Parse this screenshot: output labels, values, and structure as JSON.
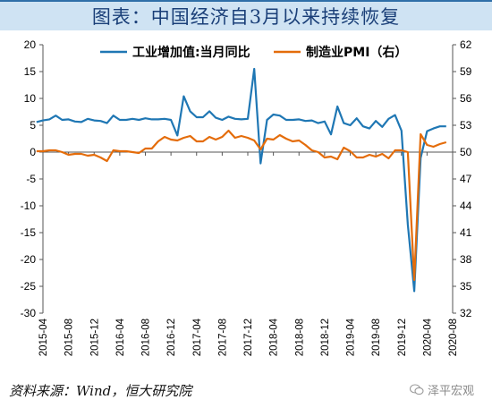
{
  "title": "图表：中国经济自3月以来持续恢复",
  "source": "资料来源：Wind，恒大研究院",
  "watermark": "泽平宏观",
  "colors": {
    "blue": "#1f77b4",
    "orange": "#e46c0a",
    "title_bg": "#cfe3f3",
    "title_text": "#1a3f78"
  },
  "chart_data": {
    "type": "line",
    "title": "",
    "legend_position": "top",
    "grid": false,
    "x_tick_labels": [
      "2015-04",
      "2015-08",
      "2015-12",
      "2016-04",
      "2016-08",
      "2016-12",
      "2017-04",
      "2017-08",
      "2017-12",
      "2018-04",
      "2018-08",
      "2018-12",
      "2019-04",
      "2019-08",
      "2019-12",
      "2020-04",
      "2020-08"
    ],
    "y_left": {
      "min": -30,
      "max": 20,
      "ticks": [
        20,
        15,
        10,
        5,
        0,
        -5,
        -10,
        -15,
        -20,
        -25,
        -30
      ]
    },
    "y_right": {
      "min": 32,
      "max": 62,
      "ticks": [
        62,
        59,
        56,
        53,
        50,
        47,
        44,
        41,
        38,
        35,
        32
      ]
    },
    "series": [
      {
        "name": "工业增加值:当月同比",
        "axis": "left",
        "color": "#1f77b4",
        "x": [
          "2015-03",
          "2015-04",
          "2015-05",
          "2015-06",
          "2015-07",
          "2015-08",
          "2015-09",
          "2015-10",
          "2015-11",
          "2015-12",
          "2016-01",
          "2016-02",
          "2016-03",
          "2016-04",
          "2016-05",
          "2016-06",
          "2016-07",
          "2016-08",
          "2016-09",
          "2016-10",
          "2016-11",
          "2016-12",
          "2017-01",
          "2017-02",
          "2017-03",
          "2017-04",
          "2017-05",
          "2017-06",
          "2017-07",
          "2017-08",
          "2017-09",
          "2017-10",
          "2017-11",
          "2017-12",
          "2018-01",
          "2018-02",
          "2018-03",
          "2018-04",
          "2018-05",
          "2018-06",
          "2018-07",
          "2018-08",
          "2018-09",
          "2018-10",
          "2018-11",
          "2018-12",
          "2019-01",
          "2019-02",
          "2019-03",
          "2019-04",
          "2019-05",
          "2019-06",
          "2019-07",
          "2019-08",
          "2019-09",
          "2019-10",
          "2019-11",
          "2019-12",
          "2020-01",
          "2020-02",
          "2020-03",
          "2020-04",
          "2020-05",
          "2020-06",
          "2020-07"
        ],
        "values": [
          5.6,
          5.9,
          6.1,
          6.8,
          6.0,
          6.1,
          5.7,
          5.6,
          6.2,
          5.9,
          5.8,
          5.4,
          6.8,
          6.0,
          6.0,
          6.2,
          6.0,
          6.3,
          6.1,
          6.1,
          6.2,
          6.0,
          3.1,
          10.4,
          7.6,
          6.5,
          6.5,
          7.6,
          6.4,
          6.0,
          6.6,
          6.2,
          6.1,
          6.2,
          15.5,
          -2.1,
          6.0,
          7.0,
          6.8,
          6.0,
          6.0,
          6.1,
          5.8,
          5.9,
          5.4,
          5.7,
          3.3,
          8.5,
          5.4,
          5.0,
          6.3,
          4.8,
          4.4,
          5.8,
          4.7,
          6.2,
          6.9,
          4.0,
          -13.5,
          -25.9,
          -1.1,
          3.9,
          4.4,
          4.8,
          4.8
        ]
      },
      {
        "name": "制造业PMI（右）",
        "axis": "right",
        "color": "#e46c0a",
        "x": [
          "2015-03",
          "2015-04",
          "2015-05",
          "2015-06",
          "2015-07",
          "2015-08",
          "2015-09",
          "2015-10",
          "2015-11",
          "2015-12",
          "2016-01",
          "2016-02",
          "2016-03",
          "2016-04",
          "2016-05",
          "2016-06",
          "2016-07",
          "2016-08",
          "2016-09",
          "2016-10",
          "2016-11",
          "2016-12",
          "2017-01",
          "2017-02",
          "2017-03",
          "2017-04",
          "2017-05",
          "2017-06",
          "2017-07",
          "2017-08",
          "2017-09",
          "2017-10",
          "2017-11",
          "2017-12",
          "2018-01",
          "2018-02",
          "2018-03",
          "2018-04",
          "2018-05",
          "2018-06",
          "2018-07",
          "2018-08",
          "2018-09",
          "2018-10",
          "2018-11",
          "2018-12",
          "2019-01",
          "2019-02",
          "2019-03",
          "2019-04",
          "2019-05",
          "2019-06",
          "2019-07",
          "2019-08",
          "2019-09",
          "2019-10",
          "2019-11",
          "2019-12",
          "2020-01",
          "2020-02",
          "2020-03",
          "2020-04",
          "2020-05",
          "2020-06",
          "2020-07"
        ],
        "values": [
          50.1,
          50.1,
          50.2,
          50.2,
          50.0,
          49.7,
          49.8,
          49.8,
          49.6,
          49.7,
          49.4,
          49.0,
          50.2,
          50.1,
          50.1,
          50.0,
          49.9,
          50.4,
          50.4,
          51.2,
          51.7,
          51.4,
          51.3,
          51.6,
          51.8,
          51.2,
          51.2,
          51.7,
          51.4,
          51.7,
          52.4,
          51.6,
          51.8,
          51.6,
          51.3,
          50.3,
          51.5,
          51.4,
          51.9,
          51.5,
          51.2,
          51.3,
          50.8,
          50.2,
          50.0,
          49.4,
          49.5,
          49.2,
          50.5,
          50.1,
          49.4,
          49.4,
          49.7,
          49.5,
          49.8,
          49.3,
          50.2,
          50.2,
          50.0,
          35.7,
          52.0,
          50.8,
          50.6,
          50.9,
          51.1
        ]
      }
    ]
  }
}
